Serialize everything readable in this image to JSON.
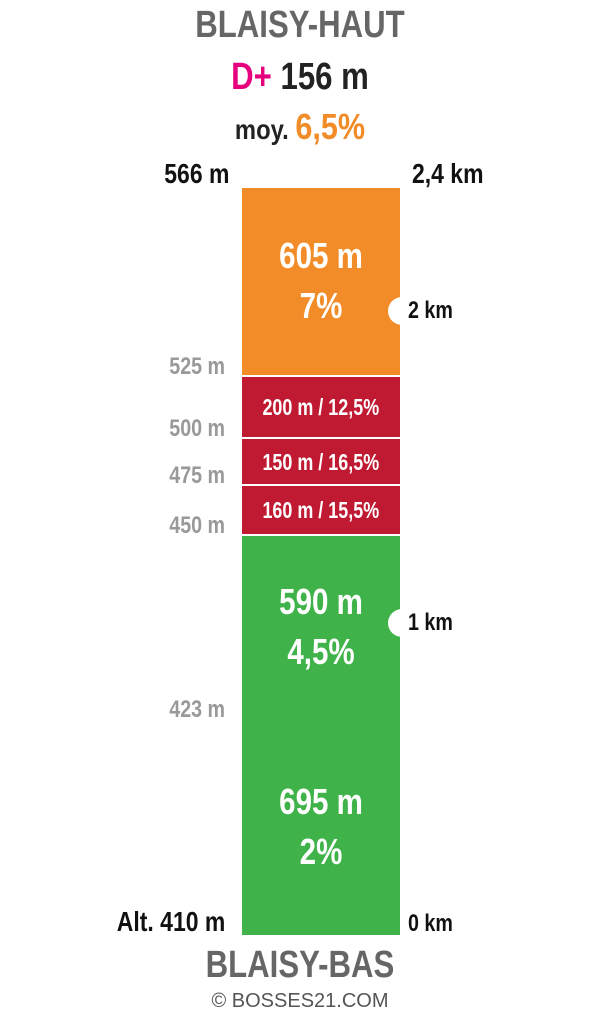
{
  "title_top": "BLAISY-HAUT",
  "dplus": {
    "label": "D+",
    "value": "156 m"
  },
  "average": {
    "label": "moy.",
    "value": "6,5%"
  },
  "summit_altitude": "566 m",
  "total_distance": "2,4 km",
  "start_altitude": "Alt. 410 m",
  "start_km": "0 km",
  "title_bottom": "BLAISY-BAS",
  "copyright": "© BOSSES21.COM",
  "colors": {
    "orange": "#f28c28",
    "red": "#c01a32",
    "green": "#3fb24a",
    "pink": "#e6007e",
    "grey_text": "#999999"
  },
  "segments": [
    {
      "line1": "695 m",
      "line2": "2%",
      "distance_m": 695,
      "grade_pct": 2,
      "color": "#3fb24a",
      "style": "big"
    },
    {
      "line1": "590 m",
      "line2": "4,5%",
      "distance_m": 590,
      "grade_pct": 4.5,
      "color": "#3fb24a",
      "style": "big"
    },
    {
      "line1": "160 m / 15,5%",
      "distance_m": 160,
      "grade_pct": 15.5,
      "color": "#c01a32",
      "style": "small"
    },
    {
      "line1": "150 m / 16,5%",
      "distance_m": 150,
      "grade_pct": 16.5,
      "color": "#c01a32",
      "style": "small"
    },
    {
      "line1": "200 m / 12,5%",
      "distance_m": 200,
      "grade_pct": 12.5,
      "color": "#c01a32",
      "style": "small"
    },
    {
      "line1": "605 m",
      "line2": "7%",
      "distance_m": 605,
      "grade_pct": 7,
      "color": "#f28c28",
      "style": "big"
    }
  ],
  "elevation_labels": [
    "423 m",
    "450 m",
    "475 m",
    "500 m",
    "525 m"
  ],
  "km_markers": [
    {
      "label": "1 km",
      "km": 1
    },
    {
      "label": "2 km",
      "km": 2
    }
  ]
}
